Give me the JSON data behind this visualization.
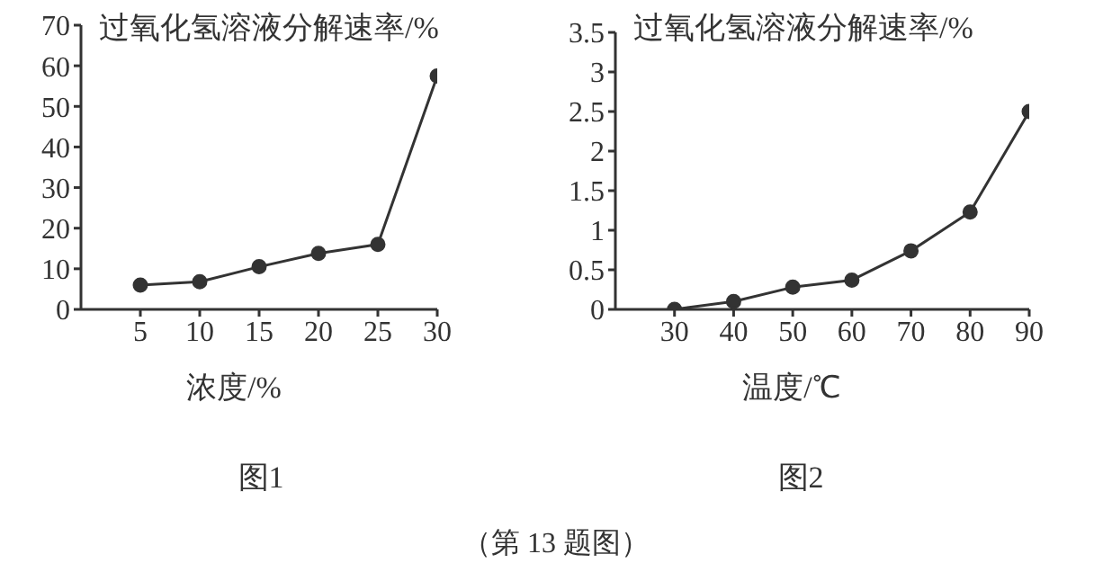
{
  "chart_data": [
    {
      "type": "line",
      "ylabel": "过氧化氢溶液分解速率/%",
      "xlabel": "浓度/%",
      "x": [
        5,
        10,
        15,
        20,
        25,
        30
      ],
      "series": [
        {
          "color": "#333333",
          "values": [
            6,
            6.8,
            10.5,
            13.8,
            16,
            57.5
          ]
        }
      ],
      "xlim": [
        0,
        30
      ],
      "xticks": [
        5,
        10,
        15,
        20,
        25,
        30
      ],
      "ylim": [
        0,
        70
      ],
      "yticks": [
        0,
        10,
        20,
        30,
        40,
        50,
        60,
        70
      ],
      "marker": "circle",
      "line_style": "solid",
      "grid": false,
      "legend": false,
      "annotations": [
        "图1",
        "（第 13 题图）"
      ]
    },
    {
      "type": "line",
      "ylabel": "过氧化氢溶液分解速率/%",
      "xlabel": "温度/℃",
      "x": [
        30,
        40,
        50,
        60,
        70,
        80,
        90
      ],
      "series": [
        {
          "color": "#333333",
          "values": [
            0,
            0.1,
            0.28,
            0.37,
            0.74,
            1.23,
            2.5
          ]
        }
      ],
      "xlim": [
        20,
        90
      ],
      "xticks": [
        30,
        40,
        50,
        60,
        70,
        80,
        90
      ],
      "ylim": [
        0,
        3.5
      ],
      "yticks": [
        0,
        0.5,
        1,
        1.5,
        2,
        2.5,
        3,
        3.5
      ],
      "marker": "circle",
      "line_style": "solid",
      "grid": false,
      "legend": false,
      "annotations": [
        "图2"
      ]
    }
  ]
}
